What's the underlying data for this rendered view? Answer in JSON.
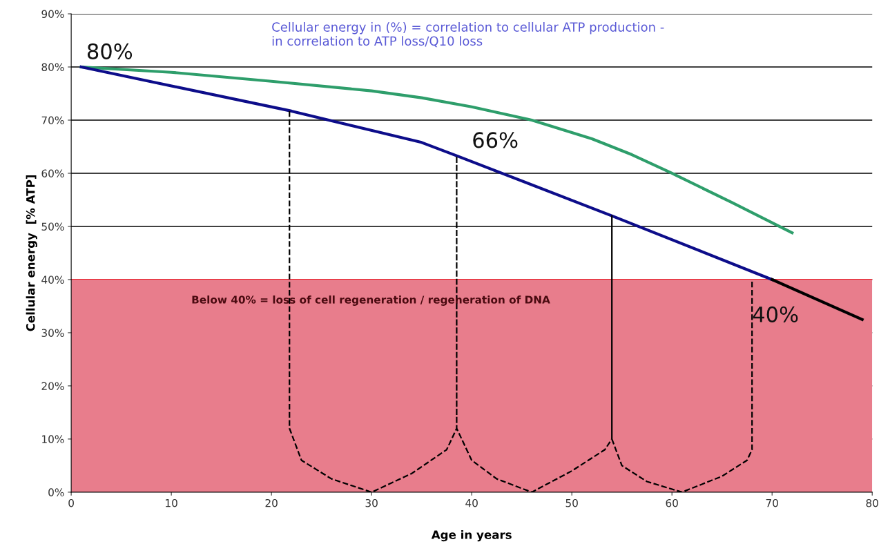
{
  "chart_data": {
    "type": "line",
    "xlabel": "Age in years",
    "ylabel": "Cellular energy  [% ATP]",
    "series": [
      {
        "color": "#2e9e6b",
        "x": [
          1,
          10,
          20,
          30,
          35,
          40,
          46,
          52,
          56,
          60,
          66,
          72
        ],
        "values": [
          80,
          79,
          77.3,
          75.5,
          74.2,
          72.5,
          70,
          66.5,
          63.5,
          60,
          54.5,
          48.8
        ]
      },
      {
        "color": "#0d0d8a",
        "x": [
          1,
          22,
          35,
          38.5,
          54,
          70
        ],
        "values": [
          80,
          71.7,
          65.8,
          63.3,
          52,
          40
        ]
      },
      {
        "color": "#000000",
        "x": [
          70,
          79
        ],
        "values": [
          40,
          32.5
        ]
      },
      {
        "color": "#000000",
        "line_style": "dashed",
        "x": [
          21.8,
          21.8,
          23,
          26,
          30,
          34,
          37.5,
          38.5,
          38.5,
          38.5,
          40,
          42.5,
          46,
          50,
          53.3,
          54,
          54,
          54,
          55,
          57.5,
          61,
          65,
          67.5,
          68,
          68
        ],
        "values": [
          71.7,
          12,
          6,
          2.5,
          0,
          3.5,
          8,
          12,
          63.3,
          12,
          6,
          2.5,
          0,
          4,
          8,
          10,
          52,
          10,
          5,
          2,
          0,
          3,
          6,
          8,
          40
        ]
      }
    ],
    "xlim": [
      0,
      80
    ],
    "xticks": [
      0,
      10,
      20,
      30,
      40,
      50,
      60,
      70,
      80
    ],
    "ylim": [
      0,
      90
    ],
    "yticks": [
      {
        "value": 0,
        "label": "0%"
      },
      {
        "value": 10,
        "label": "10%"
      },
      {
        "value": 20,
        "label": "20%"
      },
      {
        "value": 30,
        "label": "30%"
      },
      {
        "value": 40,
        "label": "40%"
      },
      {
        "value": 50,
        "label": "50%"
      },
      {
        "value": 60,
        "label": "60%"
      },
      {
        "value": 70,
        "label": "70%"
      },
      {
        "value": 80,
        "label": "80%"
      },
      {
        "value": 90,
        "label": "90%"
      }
    ],
    "bands": [
      {
        "axis": "y",
        "from": 0,
        "to": 40,
        "label": "Below 40% = loss of cell regeneration / regeneration of DNA",
        "color": "#e87d8c"
      }
    ],
    "ref_lines": [
      {
        "axis": "y",
        "value": 40,
        "color": "#e8202a"
      }
    ],
    "annotations": [
      "Cellular energy in (%) = correlation to cellular ATP production -\nin correlation to ATP loss/Q10 loss",
      {
        "text": "80%",
        "x": 1,
        "y": 80
      },
      {
        "text": "66%",
        "x": 38.5,
        "y": 63.3
      },
      {
        "text": "40%",
        "x": 70,
        "y": 40
      }
    ],
    "grid": "y",
    "line_style": "solid",
    "legend": false
  }
}
